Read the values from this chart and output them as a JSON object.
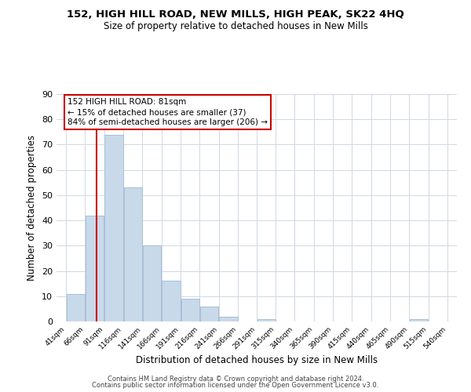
{
  "title": "152, HIGH HILL ROAD, NEW MILLS, HIGH PEAK, SK22 4HQ",
  "subtitle": "Size of property relative to detached houses in New Mills",
  "xlabel": "Distribution of detached houses by size in New Mills",
  "ylabel": "Number of detached properties",
  "bar_color": "#c8d9ea",
  "bar_edge_color": "#a8c0d6",
  "bins": [
    41,
    66,
    91,
    116,
    141,
    166,
    191,
    216,
    241,
    266,
    291,
    315,
    340,
    365,
    390,
    415,
    440,
    465,
    490,
    515,
    540
  ],
  "counts": [
    11,
    42,
    74,
    53,
    30,
    16,
    9,
    6,
    2,
    0,
    1,
    0,
    0,
    0,
    0,
    0,
    0,
    0,
    1,
    0
  ],
  "tick_labels": [
    "41sqm",
    "66sqm",
    "91sqm",
    "116sqm",
    "141sqm",
    "166sqm",
    "191sqm",
    "216sqm",
    "241sqm",
    "266sqm",
    "291sqm",
    "315sqm",
    "340sqm",
    "365sqm",
    "390sqm",
    "415sqm",
    "440sqm",
    "465sqm",
    "490sqm",
    "515sqm",
    "540sqm"
  ],
  "vline_x": 81,
  "vline_color": "#cc0000",
  "ylim": [
    0,
    90
  ],
  "yticks": [
    0,
    10,
    20,
    30,
    40,
    50,
    60,
    70,
    80,
    90
  ],
  "annotation_line1": "152 HIGH HILL ROAD: 81sqm",
  "annotation_line2": "← 15% of detached houses are smaller (37)",
  "annotation_line3": "84% of semi-detached houses are larger (206) →",
  "footer1": "Contains HM Land Registry data © Crown copyright and database right 2024.",
  "footer2": "Contains public sector information licensed under the Open Government Licence v3.0.",
  "background_color": "#ffffff",
  "grid_color": "#d0d8e4"
}
